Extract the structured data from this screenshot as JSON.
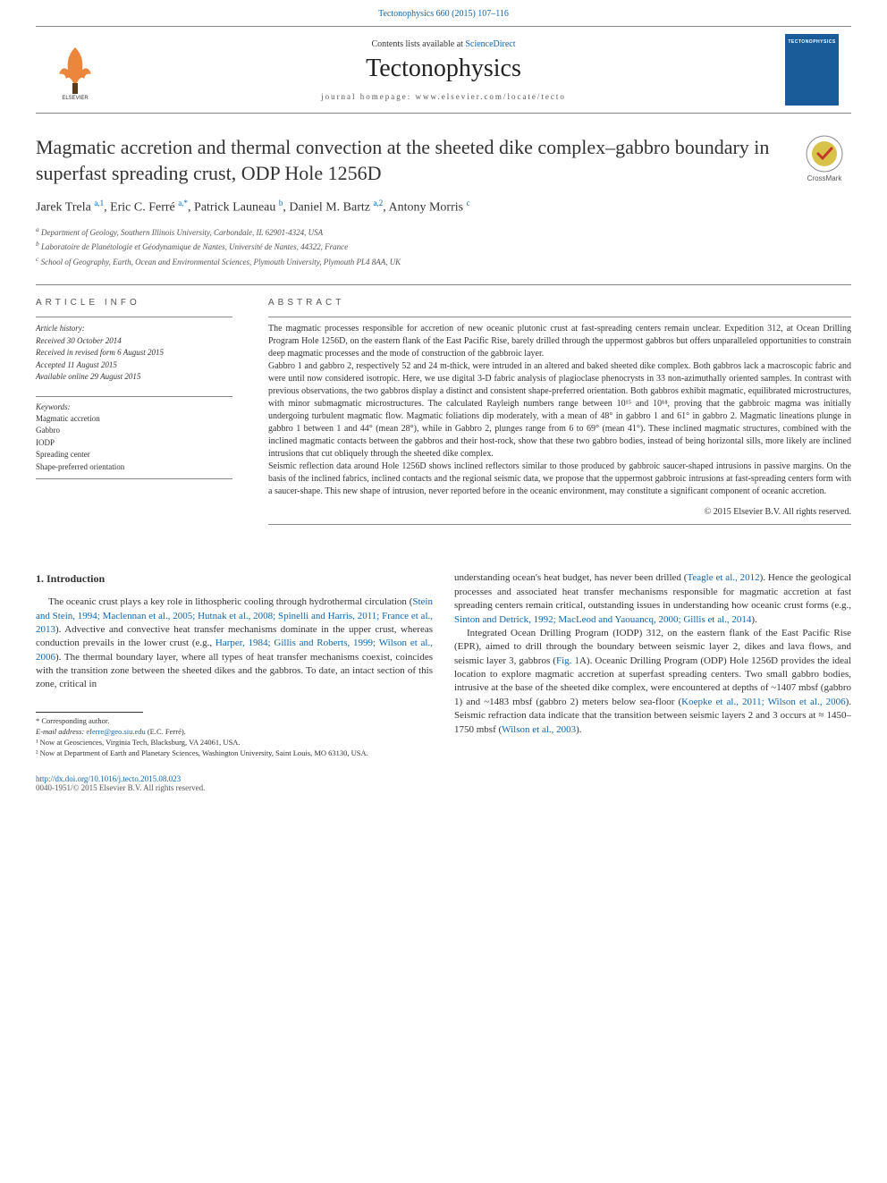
{
  "header": {
    "top_link": "Tectonophysics 660 (2015) 107–116",
    "contents_line_prefix": "Contents lists available at ",
    "contents_line_link": "ScienceDirect",
    "journal_name": "Tectonophysics",
    "homepage_line": "journal homepage: www.elsevier.com/locate/tecto",
    "cover_label": "TECTONOPHYSICS"
  },
  "article": {
    "title": "Magmatic accretion and thermal convection at the sheeted dike complex–gabbro boundary in superfast spreading crust, ODP Hole 1256D",
    "crossmark": "CrossMark",
    "authors_html": "Jarek Trela <sup>a,1</sup>, Eric C. Ferré <sup>a,*</sup>, Patrick Launeau <sup>b</sup>, Daniel M. Bartz <sup>a,2</sup>, Antony Morris <sup>c</sup>",
    "affiliations": [
      "a Department of Geology, Southern Illinois University, Carbondale, IL 62901-4324, USA",
      "b Laboratoire de Planétologie et Géodynamique de Nantes, Université de Nantes, 44322, France",
      "c School of Geography, Earth, Ocean and Environmental Sciences, Plymouth University, Plymouth PL4 8AA, UK"
    ]
  },
  "info": {
    "head": "ARTICLE INFO",
    "history_head": "Article history:",
    "history": [
      "Received 30 October 2014",
      "Received in revised form 6 August 2015",
      "Accepted 11 August 2015",
      "Available online 29 August 2015"
    ],
    "kw_head": "Keywords:",
    "keywords": [
      "Magmatic accretion",
      "Gabbro",
      "IODP",
      "Spreading center",
      "Shape-preferred orientation"
    ]
  },
  "abstract": {
    "head": "ABSTRACT",
    "p1": "The magmatic processes responsible for accretion of new oceanic plutonic crust at fast-spreading centers remain unclear. Expedition 312, at Ocean Drilling Program Hole 1256D, on the eastern flank of the East Pacific Rise, barely drilled through the uppermost gabbros but offers unparalleled opportunities to constrain deep magmatic processes and the mode of construction of the gabbroic layer.",
    "p2": "Gabbro 1 and gabbro 2, respectively 52 and 24 m-thick, were intruded in an altered and baked sheeted dike complex. Both gabbros lack a macroscopic fabric and were until now considered isotropic. Here, we use digital 3-D fabric analysis of plagioclase phenocrysts in 33 non-azimuthally oriented samples. In contrast with previous observations, the two gabbros display a distinct and consistent shape-preferred orientation. Both gabbros exhibit magmatic, equilibrated microstructures, with minor submagmatic microstructures. The calculated Rayleigh numbers range between 10¹⁵ and 10¹⁸, proving that the gabbroic magma was initially undergoing turbulent magmatic flow. Magmatic foliations dip moderately, with a mean of 48° in gabbro 1 and 61° in gabbro 2. Magmatic lineations plunge in gabbro 1 between 1 and 44° (mean 28°), while in Gabbro 2, plunges range from 6 to 69° (mean 41°). These inclined magmatic structures, combined with the inclined magmatic contacts between the gabbros and their host-rock, show that these two gabbro bodies, instead of being horizontal sills, more likely are inclined intrusions that cut obliquely through the sheeted dike complex.",
    "p3": "Seismic reflection data around Hole 1256D shows inclined reflectors similar to those produced by gabbroic saucer-shaped intrusions in passive margins. On the basis of the inclined fabrics, inclined contacts and the regional seismic data, we propose that the uppermost gabbroic intrusions at fast-spreading centers form with a saucer-shape. This new shape of intrusion, never reported before in the oceanic environment, may constitute a significant component of oceanic accretion.",
    "copyright": "© 2015 Elsevier B.V. All rights reserved."
  },
  "body": {
    "section_head": "1. Introduction",
    "left_p1_a": "The oceanic crust plays a key role in lithospheric cooling through hydrothermal circulation (",
    "left_p1_ref1": "Stein and Stein, 1994; Maclennan et al., 2005; Hutnak et al., 2008; Spinelli and Harris, 2011; France et al., 2013",
    "left_p1_b": "). Advective and convective heat transfer mechanisms dominate in the upper crust, whereas conduction prevails in the lower crust (e.g., ",
    "left_p1_ref2": "Harper, 1984; Gillis and Roberts, 1999; Wilson et al., 2006",
    "left_p1_c": "). The thermal boundary layer, where all types of heat transfer mechanisms coexist, coincides with the transition zone between the sheeted dikes and the gabbros. To date, an intact section of this zone, critical in",
    "right_p1_a": "understanding ocean's heat budget, has never been drilled (",
    "right_p1_ref1": "Teagle et al., 2012",
    "right_p1_b": "). Hence the geological processes and associated heat transfer mechanisms responsible for magmatic accretion at fast spreading centers remain critical, outstanding issues in understanding how oceanic crust forms (e.g., ",
    "right_p1_ref2": "Sinton and Detrick, 1992; MacLeod and Yaouancq, 2000; Gillis et al., 2014",
    "right_p1_c": ").",
    "right_p2_a": "Integrated Ocean Drilling Program (IODP) 312, on the eastern flank of the East Pacific Rise (EPR), aimed to drill through the boundary between seismic layer 2, dikes and lava flows, and seismic layer 3, gabbros (",
    "right_p2_ref1": "Fig. 1",
    "right_p2_b": "A). Oceanic Drilling Program (ODP) Hole 1256D provides the ideal location to explore magmatic accretion at superfast spreading centers. Two small gabbro bodies, intrusive at the base of the sheeted dike complex, were encountered at depths of ~1407 mbsf (gabbro 1) and ~1483 mbsf (gabbro 2) meters below sea-floor (",
    "right_p2_ref2": "Koepke et al., 2011; Wilson et al., 2006",
    "right_p2_c": "). Seismic refraction data indicate that the transition between seismic layers 2 and 3 occurs at ≈ 1450–1750 mbsf (",
    "right_p2_ref3": "Wilson et al., 2003",
    "right_p2_d": ")."
  },
  "footnotes": {
    "corr": "* Corresponding author.",
    "email_label": "E-mail address: ",
    "email": "eferre@geo.siu.edu",
    "email_who": " (E.C. Ferré).",
    "n1": "¹ Now at Geosciences, Virginia Tech, Blacksburg, VA 24061, USA.",
    "n2": "² Now at Department of Earth and Planetary Sciences, Washington University, Saint Louis, MO 63130, USA."
  },
  "footer": {
    "doi": "http://dx.doi.org/10.1016/j.tecto.2015.08.023",
    "issn_line": "0040-1951/© 2015 Elsevier B.V. All rights reserved."
  },
  "colors": {
    "link": "#1066b0",
    "text": "#333333",
    "muted": "#555555",
    "rule": "#888888",
    "cover_bg": "#1a5b99"
  }
}
